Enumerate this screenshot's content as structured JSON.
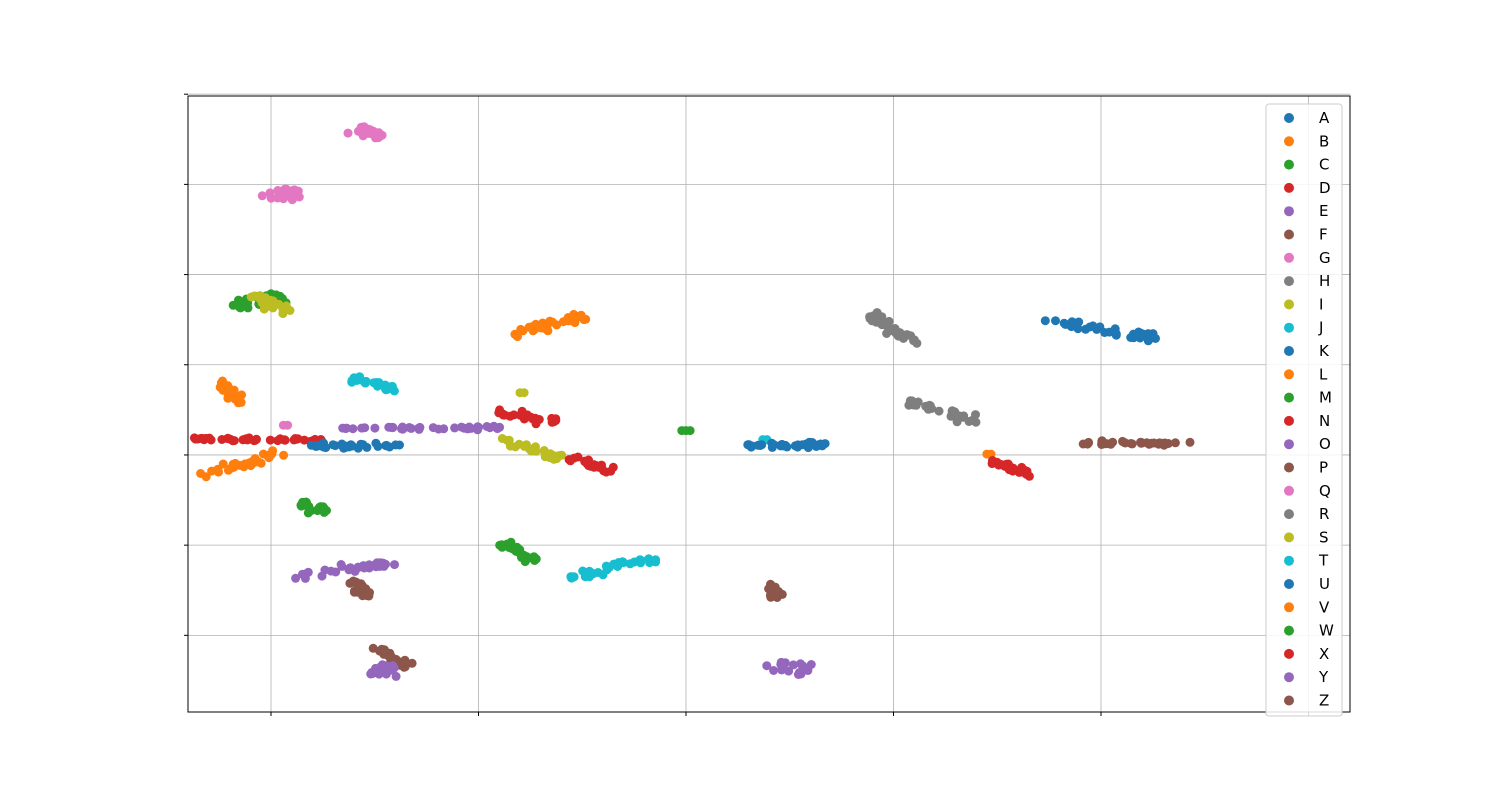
{
  "chart_data": {
    "type": "scatter",
    "title": "",
    "xlabel": "",
    "ylabel": "",
    "xlim": [
      -0.4,
      5.2
    ],
    "ylim": [
      -2.85,
      3.98
    ],
    "grid": true,
    "legend_position": "right",
    "x_ticks": [
      0,
      1,
      2,
      3,
      4,
      5
    ],
    "y_ticks": [
      -2,
      -1,
      0,
      1,
      2,
      3,
      4
    ],
    "series": [
      {
        "name": "A",
        "color": "#1f77b4",
        "clusters": [
          {
            "center": [
              4.0,
              1.4
            ],
            "spread": [
              0.22,
              0.06
            ],
            "angle": -20,
            "count": 36
          }
        ]
      },
      {
        "name": "B",
        "color": "#ff7f0e",
        "clusters": [
          {
            "center": [
              1.37,
              1.46
            ],
            "spread": [
              0.18,
              0.05
            ],
            "angle": 30,
            "count": 32
          }
        ]
      },
      {
        "name": "C",
        "color": "#2ca02c",
        "clusters": [
          {
            "center": [
              -0.07,
              1.7
            ],
            "spread": [
              0.1,
              0.07
            ],
            "angle": 25,
            "count": 34
          }
        ]
      },
      {
        "name": "D",
        "color": "#d62728",
        "clusters": [
          {
            "center": [
              -0.06,
              0.17
            ],
            "spread": [
              0.24,
              0.02
            ],
            "angle": 0,
            "count": 38
          }
        ]
      },
      {
        "name": "E",
        "color": "#9467bd",
        "clusters": [
          {
            "center": [
              0.73,
              0.3
            ],
            "spread": [
              0.3,
              0.02
            ],
            "angle": 0,
            "count": 38
          }
        ]
      },
      {
        "name": "F",
        "color": "#8c564b",
        "clusters": [
          {
            "center": [
              0.58,
              -2.24
            ],
            "spread": [
              0.1,
              0.04
            ],
            "angle": -60,
            "count": 28
          }
        ]
      },
      {
        "name": "G",
        "color": "#e377c2",
        "clusters": [
          {
            "center": [
              0.07,
              2.89
            ],
            "spread": [
              0.05,
              0.09
            ],
            "angle": 80,
            "count": 24
          },
          {
            "center": [
              0.48,
              3.58
            ],
            "spread": [
              0.06,
              0.05
            ],
            "angle": -40,
            "count": 22
          }
        ]
      },
      {
        "name": "H",
        "color": "#7f7f7f",
        "clusters": [
          {
            "center": [
              3.0,
              1.38
            ],
            "spread": [
              0.16,
              0.04
            ],
            "angle": -55,
            "count": 30
          },
          {
            "center": [
              3.24,
              0.48
            ],
            "spread": [
              0.16,
              0.05
            ],
            "angle": -35,
            "count": 26
          }
        ]
      },
      {
        "name": "I",
        "color": "#bcbd22",
        "clusters": [
          {
            "center": [
              0.0,
              1.68
            ],
            "spread": [
              0.1,
              0.05
            ],
            "angle": -50,
            "count": 28
          },
          {
            "center": [
              1.25,
              0.06
            ],
            "spread": [
              0.14,
              0.05
            ],
            "angle": -35,
            "count": 26
          }
        ]
      },
      {
        "name": "J",
        "color": "#17becf",
        "clusters": [
          {
            "center": [
              0.5,
              0.78
            ],
            "spread": [
              0.1,
              0.04
            ],
            "angle": -30,
            "count": 26
          },
          {
            "center": [
              1.65,
              -1.25
            ],
            "spread": [
              0.18,
              0.04
            ],
            "angle": 30,
            "count": 32
          }
        ]
      },
      {
        "name": "K",
        "color": "#1f77b4",
        "clusters": [
          {
            "center": [
              0.4,
              0.1
            ],
            "spread": [
              0.18,
              0.03
            ],
            "angle": 0,
            "count": 34
          }
        ]
      },
      {
        "name": "L",
        "color": "#ff7f0e",
        "clusters": [
          {
            "center": [
              -0.2,
              0.7
            ],
            "spread": [
              0.1,
              0.05
            ],
            "angle": -70,
            "count": 24
          },
          {
            "center": [
              -0.13,
              -0.1
            ],
            "spread": [
              0.18,
              0.06
            ],
            "angle": 35,
            "count": 32
          }
        ]
      },
      {
        "name": "M",
        "color": "#2ca02c",
        "clusters": [
          {
            "center": [
              0.2,
              -0.58
            ],
            "spread": [
              0.06,
              0.05
            ],
            "angle": -30,
            "count": 24
          },
          {
            "center": [
              1.19,
              -1.08
            ],
            "spread": [
              0.1,
              0.04
            ],
            "angle": -45,
            "count": 24
          }
        ]
      },
      {
        "name": "N",
        "color": "#d62728",
        "clusters": [
          {
            "center": [
              1.23,
              0.42
            ],
            "spread": [
              0.12,
              0.05
            ],
            "angle": -20,
            "count": 28
          },
          {
            "center": [
              1.55,
              -0.11
            ],
            "spread": [
              0.1,
              0.04
            ],
            "angle": -40,
            "count": 24
          }
        ]
      },
      {
        "name": "O",
        "color": "#9467bd",
        "clusters": [
          {
            "center": [
              0.35,
              -1.27
            ],
            "spread": [
              0.2,
              0.05
            ],
            "angle": 20,
            "count": 32
          },
          {
            "center": [
              0.55,
              -2.38
            ],
            "spread": [
              0.05,
              0.08
            ],
            "angle": 80,
            "count": 20
          }
        ]
      },
      {
        "name": "P",
        "color": "#8c564b",
        "clusters": [
          {
            "center": [
              0.43,
              -1.49
            ],
            "spread": [
              0.08,
              0.04
            ],
            "angle": -70,
            "count": 22
          },
          {
            "center": [
              4.17,
              0.13
            ],
            "spread": [
              0.2,
              0.02
            ],
            "angle": 0,
            "count": 34
          }
        ]
      },
      {
        "name": "Q",
        "color": "#e377c2",
        "clusters": [
          {
            "center": [
              0.07,
              0.33
            ],
            "spread": [
              0.02,
              0.02
            ],
            "angle": 0,
            "count": 2
          }
        ]
      },
      {
        "name": "R",
        "color": "#7f7f7f",
        "clusters": [
          {
            "center": [
              3.0,
              1.38
            ],
            "spread": [
              0.02,
              0.02
            ],
            "angle": 0,
            "count": 2
          }
        ]
      },
      {
        "name": "S",
        "color": "#bcbd22",
        "clusters": [
          {
            "center": [
              1.21,
              0.69
            ],
            "spread": [
              0.02,
              0.02
            ],
            "angle": 0,
            "count": 2
          }
        ]
      },
      {
        "name": "T",
        "color": "#17becf",
        "clusters": [
          {
            "center": [
              2.38,
              0.17
            ],
            "spread": [
              0.02,
              0.02
            ],
            "angle": 0,
            "count": 2
          }
        ]
      },
      {
        "name": "U",
        "color": "#1f77b4",
        "clusters": [
          {
            "center": [
              2.48,
              0.11
            ],
            "spread": [
              0.15,
              0.03
            ],
            "angle": 0,
            "count": 34
          }
        ]
      },
      {
        "name": "V",
        "color": "#ff7f0e",
        "clusters": [
          {
            "center": [
              3.46,
              0.01
            ],
            "spread": [
              0.02,
              0.02
            ],
            "angle": 0,
            "count": 2
          }
        ]
      },
      {
        "name": "W",
        "color": "#2ca02c",
        "clusters": [
          {
            "center": [
              2.0,
              0.27
            ],
            "spread": [
              0.02,
              0.02
            ],
            "angle": 0,
            "count": 3
          }
        ]
      },
      {
        "name": "X",
        "color": "#d62728",
        "clusters": [
          {
            "center": [
              3.57,
              -0.15
            ],
            "spread": [
              0.1,
              0.04
            ],
            "angle": -40,
            "count": 28
          }
        ]
      },
      {
        "name": "Y",
        "color": "#9467bd",
        "clusters": [
          {
            "center": [
              2.5,
              -2.37
            ],
            "spread": [
              0.05,
              0.1
            ],
            "angle": 80,
            "count": 18
          }
        ]
      },
      {
        "name": "Z",
        "color": "#8c564b",
        "clusters": [
          {
            "center": [
              2.42,
              -1.5
            ],
            "spread": [
              0.07,
              0.04
            ],
            "angle": -75,
            "count": 20
          }
        ]
      }
    ]
  }
}
